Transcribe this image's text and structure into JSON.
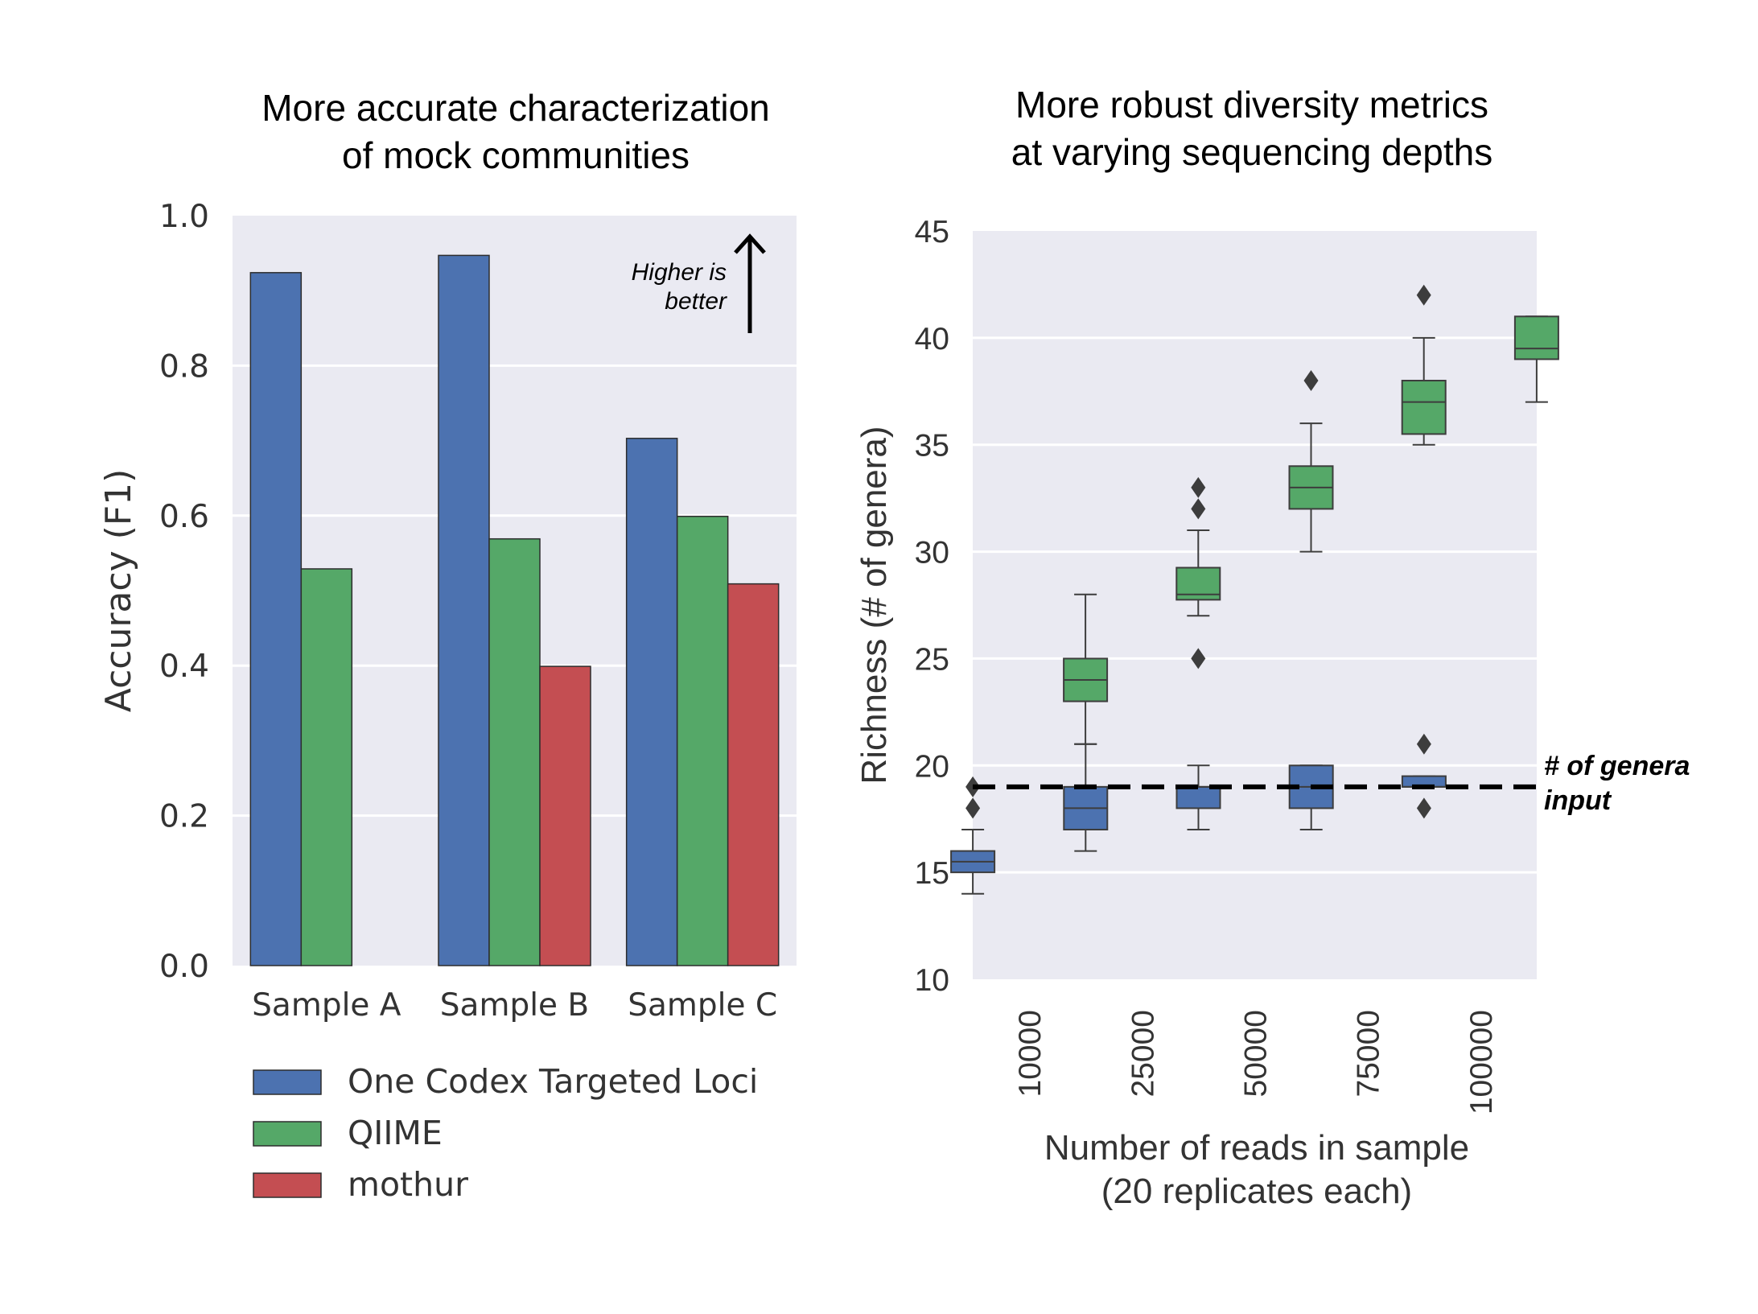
{
  "chart_data": [
    {
      "type": "bar",
      "title": [
        "More accurate characterization",
        "of mock communities"
      ],
      "xlabel": "",
      "ylabel": "Accuracy (F1)",
      "ylim": [
        0,
        1.0
      ],
      "yticks": [
        "0.0",
        "0.2",
        "0.4",
        "0.6",
        "0.8",
        "1.0"
      ],
      "categories": [
        "Sample A",
        "Sample B",
        "Sample C"
      ],
      "series": [
        {
          "name": "One Codex Targeted Loci",
          "color": "#4c72b0",
          "values": [
            0.924,
            0.947,
            0.703
          ]
        },
        {
          "name": "QIIME",
          "color": "#55a868",
          "values": [
            0.529,
            0.569,
            0.599
          ]
        },
        {
          "name": "mothur",
          "color": "#c44e52",
          "values": [
            null,
            0.399,
            0.509
          ]
        }
      ],
      "annotation": [
        "Higher is",
        "better"
      ],
      "grid": true,
      "legend_position": "bottom"
    },
    {
      "type": "box",
      "title": [
        "More robust diversity metrics",
        "at varying sequencing depths"
      ],
      "xlabel": [
        "Number of reads in sample",
        "(20 replicates each)"
      ],
      "ylabel": "Richness (# of genera)",
      "ylim": [
        10,
        45
      ],
      "yticks": [
        "10",
        "15",
        "20",
        "25",
        "30",
        "35",
        "40",
        "45"
      ],
      "categories": [
        "10000",
        "25000",
        "50000",
        "75000",
        "100000"
      ],
      "series": [
        {
          "name": "",
          "color": "#4c72b0",
          "boxes": [
            {
              "min": 14,
              "q1": 15,
              "median": 15.5,
              "q3": 16,
              "max": 17,
              "outliers": [
                18,
                19
              ]
            },
            {
              "min": 16,
              "q1": 17,
              "median": 18,
              "q3": 19,
              "max": 21,
              "outliers": []
            },
            {
              "min": 17,
              "q1": 18,
              "median": 19,
              "q3": 19,
              "max": 20,
              "outliers": []
            },
            {
              "min": 17,
              "q1": 18,
              "median": 19,
              "q3": 20,
              "max": 20,
              "outliers": []
            },
            {
              "min": 19,
              "q1": 19,
              "median": 19,
              "q3": 19.5,
              "max": 19.5,
              "outliers": [
                18,
                21
              ]
            }
          ]
        },
        {
          "name": "",
          "color": "#55a868",
          "boxes": [
            {
              "min": 21,
              "q1": 23,
              "median": 24,
              "q3": 25,
              "max": 28,
              "outliers": []
            },
            {
              "min": 27,
              "q1": 27.75,
              "median": 28,
              "q3": 29.25,
              "max": 31,
              "outliers": [
                25,
                32,
                33
              ]
            },
            {
              "min": 30,
              "q1": 32,
              "median": 33,
              "q3": 34,
              "max": 36,
              "outliers": [
                38
              ]
            },
            {
              "min": 35,
              "q1": 35.5,
              "median": 37,
              "q3": 38,
              "max": 40,
              "outliers": [
                42
              ]
            },
            {
              "min": 37,
              "q1": 39,
              "median": 39.5,
              "q3": 41,
              "max": 41,
              "outliers": []
            }
          ]
        }
      ],
      "reference_line": {
        "value": 19,
        "label": [
          "# of genera",
          "input"
        ]
      },
      "grid": true
    }
  ]
}
